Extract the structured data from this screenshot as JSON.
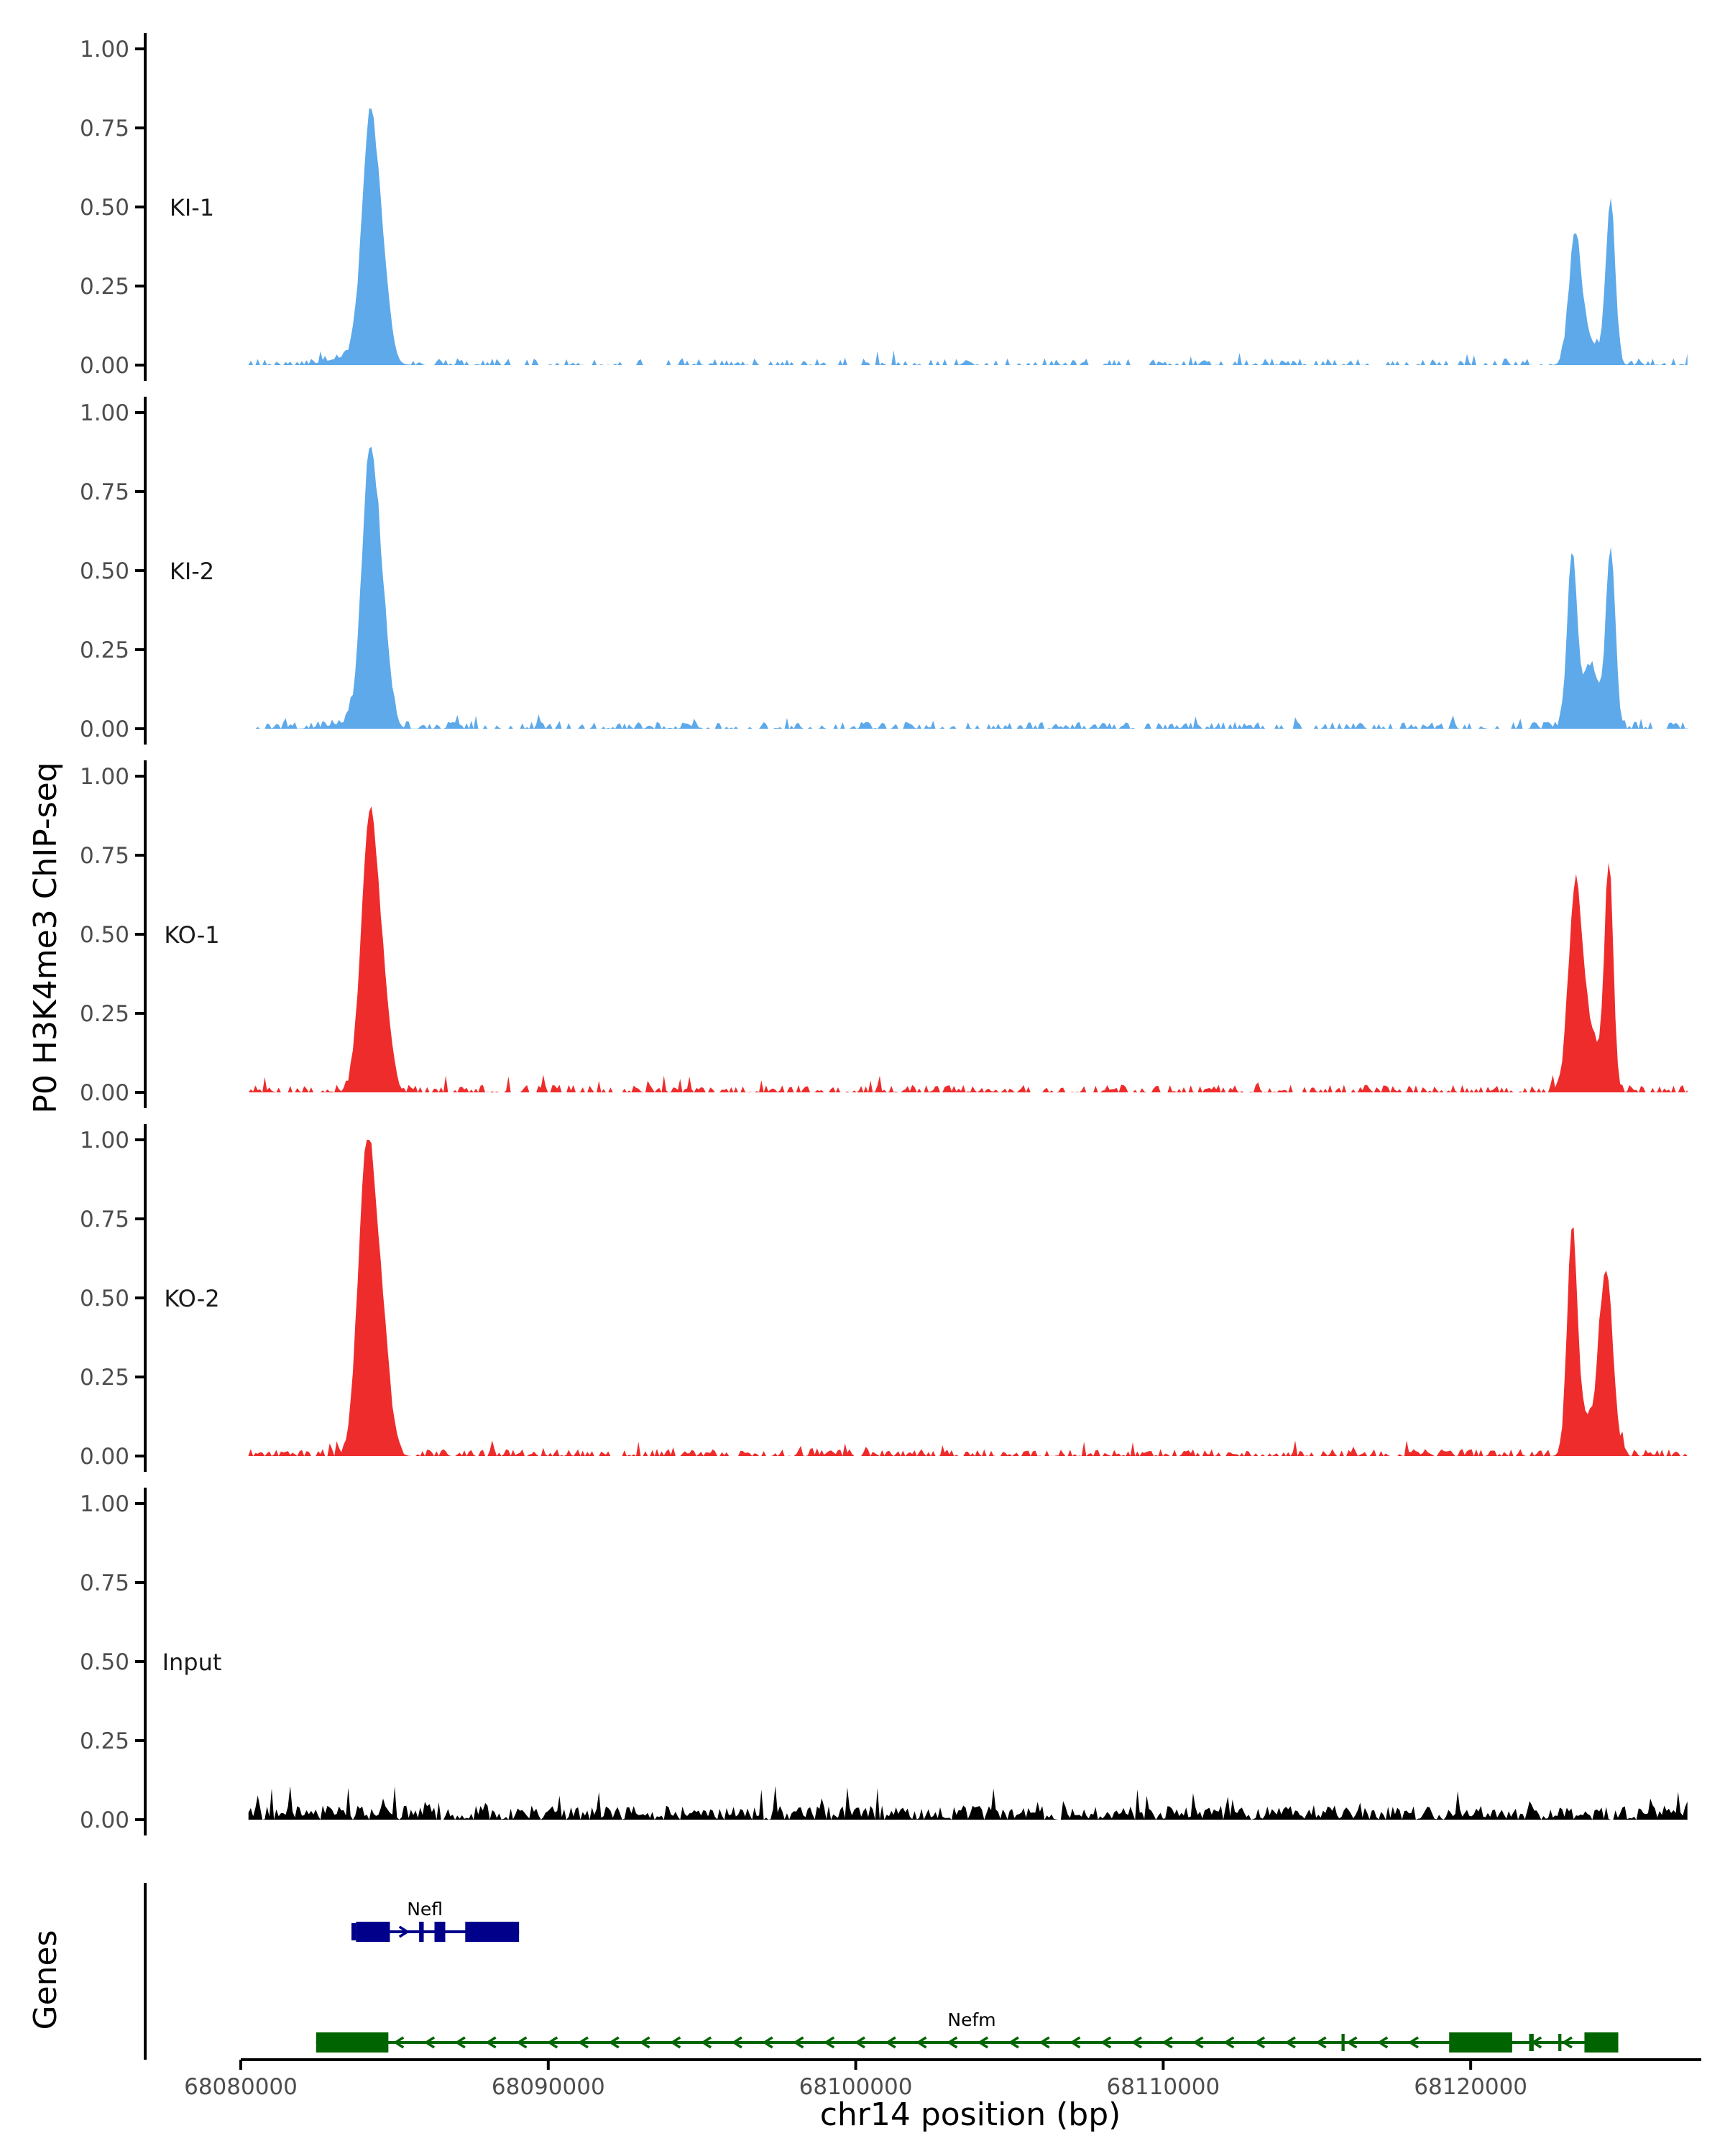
{
  "chart_data": {
    "type": "area",
    "title": "",
    "ylabel": "P0 H3K4me3 ChIP-seq",
    "xlabel": "chr14 position (bp)",
    "genes_label": "Genes",
    "ylim": [
      0,
      1
    ],
    "xlim": [
      68080000,
      68127500
    ],
    "y_ticks": [
      "0.00",
      "0.25",
      "0.50",
      "0.75",
      "1.00"
    ],
    "x_ticks": [
      {
        "value": 68080000,
        "label": "68080000"
      },
      {
        "value": 68090000,
        "label": "68090000"
      },
      {
        "value": 68100000,
        "label": "68100000"
      },
      {
        "value": 68110000,
        "label": "68110000"
      },
      {
        "value": 68120000,
        "label": "68120000"
      }
    ],
    "data_start": 68080250,
    "data_end": 68127050,
    "series": [
      {
        "name": "KI-1",
        "color": "#5DA9E9",
        "peaks": [
          [
            68083700,
            0.03,
            700
          ],
          [
            68084200,
            0.75,
            260
          ],
          [
            68084650,
            0.22,
            220
          ],
          [
            68123400,
            0.4,
            200
          ],
          [
            68124550,
            0.52,
            150
          ],
          [
            68123900,
            0.07,
            300
          ]
        ],
        "noise_amp": 0.022,
        "noise_density": 0.45
      },
      {
        "name": "KI-2",
        "color": "#5DA9E9",
        "peaks": [
          [
            68083700,
            0.02,
            700
          ],
          [
            68084200,
            0.84,
            260
          ],
          [
            68084650,
            0.25,
            220
          ],
          [
            68123300,
            0.55,
            160
          ],
          [
            68124550,
            0.57,
            150
          ],
          [
            68123900,
            0.2,
            250
          ]
        ],
        "noise_amp": 0.022,
        "noise_density": 0.55
      },
      {
        "name": "KO-1",
        "color": "#EE2C2C",
        "peaks": [
          [
            68084200,
            0.88,
            280
          ],
          [
            68084700,
            0.2,
            220
          ],
          [
            68123400,
            0.62,
            220
          ],
          [
            68124500,
            0.7,
            140
          ],
          [
            68123900,
            0.18,
            300
          ]
        ],
        "noise_amp": 0.024,
        "noise_density": 0.6
      },
      {
        "name": "KO-2",
        "color": "#EE2C2C",
        "peaks": [
          [
            68084100,
            0.97,
            280
          ],
          [
            68084600,
            0.35,
            250
          ],
          [
            68123300,
            0.68,
            160
          ],
          [
            68124400,
            0.58,
            220
          ],
          [
            68123700,
            0.12,
            300
          ]
        ],
        "noise_amp": 0.022,
        "noise_density": 0.65
      },
      {
        "name": "Input",
        "color": "#000000",
        "peaks": [],
        "noise_amp": 0.045,
        "noise_density": 0.95
      }
    ],
    "genes": [
      {
        "name": "Nefl",
        "color": "#00008B",
        "start": 68083600,
        "end": 68089050,
        "strand": "+",
        "row": 1,
        "exons": [
          [
            68083750,
            68084850
          ],
          [
            68085800,
            68085950
          ],
          [
            68086300,
            68086650
          ],
          [
            68087300,
            68089050
          ]
        ],
        "thin": [
          [
            68083600,
            68083750
          ]
        ]
      },
      {
        "name": "Nefm",
        "color": "#006400",
        "start": 68082450,
        "end": 68124800,
        "strand": "-",
        "row": 2,
        "exons": [
          [
            68082450,
            68084800
          ],
          [
            68119300,
            68121350
          ],
          [
            68123700,
            68124800
          ]
        ],
        "thin": [
          [
            68121900,
            68122050
          ],
          [
            68122850,
            68122950
          ],
          [
            68115800,
            68115900
          ]
        ]
      }
    ]
  }
}
